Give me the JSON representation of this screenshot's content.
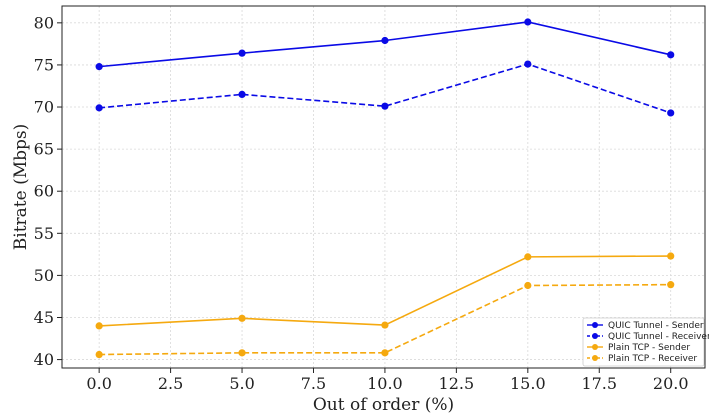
{
  "chart_data": {
    "type": "line",
    "x": [
      0.0,
      5.0,
      10.0,
      15.0,
      20.0
    ],
    "xlabel": "Out of order (%)",
    "ylabel": "Bitrate (Mbps)",
    "xlim": [
      -1.3,
      21.2
    ],
    "ylim": [
      39,
      82
    ],
    "xticks": [
      "0.0",
      "2.5",
      "5.0",
      "7.5",
      "10.0",
      "12.5",
      "15.0",
      "17.5",
      "20.0"
    ],
    "yticks": [
      "40",
      "45",
      "50",
      "55",
      "60",
      "65",
      "70",
      "75",
      "80"
    ],
    "grid": true,
    "legend_position": "bottom-right",
    "series": [
      {
        "name": "QUIC Tunnel - Sender",
        "color": "#0a0ae6",
        "linestyle": "solid",
        "values": [
          74.8,
          76.4,
          77.9,
          80.1,
          76.2
        ]
      },
      {
        "name": "QUIC Tunnel - Receiver",
        "color": "#0a0ae6",
        "linestyle": "dashed",
        "values": [
          69.9,
          71.5,
          70.1,
          75.1,
          69.3
        ]
      },
      {
        "name": "Plain TCP - Sender",
        "color": "#f5a90f",
        "linestyle": "solid",
        "values": [
          44.0,
          44.9,
          44.1,
          52.2,
          52.3
        ]
      },
      {
        "name": "Plain TCP - Receiver",
        "color": "#f5a90f",
        "linestyle": "dashed",
        "values": [
          40.6,
          40.8,
          40.8,
          48.8,
          48.9
        ]
      }
    ]
  }
}
